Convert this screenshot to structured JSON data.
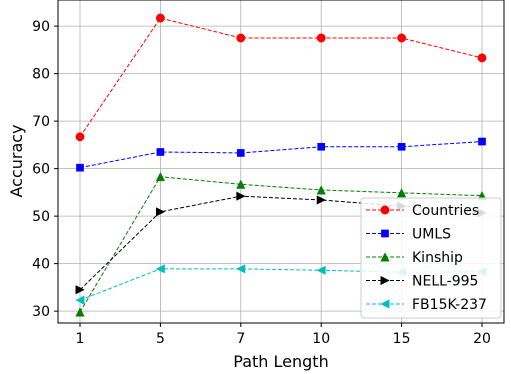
{
  "chart_data": {
    "type": "line",
    "xlabel": "Path Length",
    "ylabel": "Accuracy",
    "categories": [
      "1",
      "5",
      "7",
      "10",
      "15",
      "20"
    ],
    "yticks": [
      30,
      40,
      50,
      60,
      70,
      80,
      90
    ],
    "ylim": [
      27.5,
      95.5
    ],
    "grid": true,
    "legend_position": "bottom-right",
    "series": [
      {
        "name": "Countries",
        "color": "#ff0000",
        "marker": "circle",
        "values": [
          66.7,
          91.7,
          87.5,
          87.5,
          87.5,
          83.3
        ]
      },
      {
        "name": "UMLS",
        "color": "#0000ff",
        "marker": "square",
        "values": [
          60.2,
          63.5,
          63.3,
          64.6,
          64.6,
          65.7
        ]
      },
      {
        "name": "Kinship",
        "color": "#008000",
        "marker": "triangle-up",
        "values": [
          29.8,
          58.3,
          56.7,
          55.5,
          54.9,
          54.3
        ]
      },
      {
        "name": "NELL-995",
        "color": "#000000",
        "marker": "triangle-right",
        "values": [
          34.5,
          50.9,
          54.2,
          53.4,
          52.1,
          50.7
        ]
      },
      {
        "name": "FB15K-237",
        "color": "#00bfbf",
        "marker": "triangle-left",
        "values": [
          32.3,
          38.9,
          38.9,
          38.6,
          38.2,
          38.3
        ]
      }
    ]
  }
}
